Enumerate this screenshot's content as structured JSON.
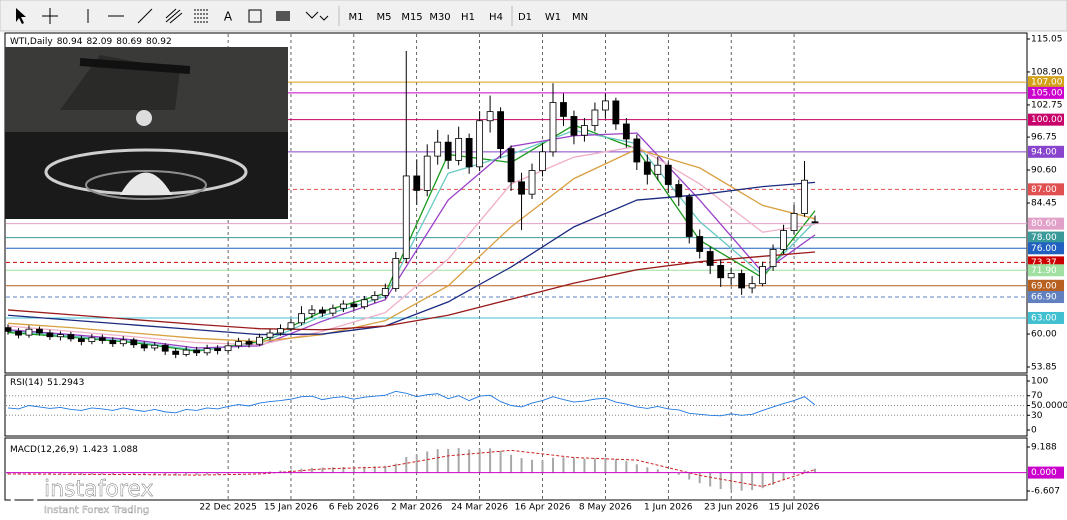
{
  "toolbar": {
    "timeframes": [
      "M1",
      "M5",
      "M15",
      "M30",
      "H1",
      "H4",
      "D1",
      "W1",
      "MN"
    ]
  },
  "logo": {
    "name": "instaforex",
    "tagline": "Instant Forex Trading"
  },
  "chart_data": [
    {
      "type": "candlestick",
      "title": "WTI,Daily",
      "header_values": [
        80.94,
        82.09,
        80.69,
        80.92
      ],
      "categories": [
        null,
        null,
        null,
        null,
        null,
        null,
        null,
        null,
        null,
        null,
        null,
        null,
        null,
        null,
        null,
        null,
        null,
        null,
        null,
        null,
        null,
        "22 Dec 2025",
        null,
        null,
        null,
        null,
        null,
        "15 Jan 2026",
        null,
        null,
        null,
        null,
        null,
        "6 Feb 2026",
        null,
        null,
        null,
        null,
        null,
        "2 Mar 2026",
        null,
        null,
        null,
        null,
        null,
        "24 Mar 2026",
        null,
        null,
        null,
        null,
        null,
        "16 Apr 2026",
        null,
        null,
        null,
        null,
        null,
        "8 May 2026",
        null,
        null,
        null,
        null,
        null,
        "1 Jun 2026",
        null,
        null,
        null,
        null,
        null,
        "23 Jun 2026",
        null,
        null,
        null,
        null,
        null,
        "15 Jul 2026",
        null,
        null
      ],
      "ohlc": {
        "open": [
          61.2,
          60.5,
          59.8,
          60.9,
          60.2,
          59.5,
          59.9,
          59.1,
          58.6,
          59.3,
          58.8,
          58.2,
          58.9,
          58.0,
          57.4,
          57.9,
          56.8,
          56.2,
          57.0,
          56.5,
          57.3,
          56.9,
          57.8,
          58.6,
          58.1,
          59.4,
          60.2,
          61.0,
          62.1,
          63.8,
          64.5,
          63.9,
          64.8,
          65.6,
          65.1,
          66.4,
          67.2,
          68.5,
          74.1,
          89.5,
          86.8,
          93.2,
          95.8,
          92.4,
          96.5,
          91.2,
          99.8,
          101.5,
          94.6,
          88.4,
          86.1,
          90.5,
          94.0,
          103.2,
          100.6,
          97.1,
          98.9,
          101.8,
          103.5,
          99.2,
          96.4,
          92.1,
          89.8,
          91.5,
          87.9,
          85.6,
          78.2,
          75.4,
          72.8,
          70.5,
          71.3,
          68.6,
          69.4,
          72.6,
          75.8,
          79.3,
          82.5,
          80.94
        ],
        "high": [
          61.8,
          61.1,
          61.6,
          61.4,
          60.8,
          60.5,
          60.4,
          59.7,
          60.0,
          59.9,
          59.4,
          59.6,
          59.3,
          58.6,
          58.5,
          58.3,
          57.4,
          57.7,
          57.6,
          58.0,
          57.9,
          58.5,
          59.3,
          59.2,
          60.1,
          60.9,
          61.8,
          62.8,
          65.2,
          65.4,
          65.1,
          65.5,
          66.3,
          66.2,
          67.1,
          68.0,
          69.4,
          75.3,
          112.8,
          92.6,
          95.4,
          98.1,
          97.2,
          98.7,
          97.4,
          101.6,
          104.5,
          102.3,
          95.2,
          90.1,
          91.8,
          95.6,
          106.8,
          104.9,
          101.7,
          100.3,
          103.2,
          104.9,
          104.1,
          100.3,
          97.2,
          93.5,
          93.1,
          92.2,
          88.8,
          86.2,
          79.5,
          76.3,
          73.9,
          72.4,
          72.0,
          70.8,
          73.5,
          76.7,
          80.4,
          84.1,
          92.3,
          82.09
        ],
        "low": [
          59.9,
          59.2,
          59.3,
          59.7,
          58.9,
          58.8,
          58.6,
          57.9,
          58.1,
          58.2,
          57.6,
          57.7,
          57.4,
          56.8,
          56.9,
          56.1,
          55.5,
          55.8,
          55.9,
          56.0,
          56.2,
          56.4,
          57.3,
          57.5,
          57.8,
          58.9,
          59.7,
          60.5,
          61.6,
          63.0,
          63.2,
          63.3,
          64.1,
          64.4,
          64.6,
          65.8,
          66.6,
          67.9,
          73.2,
          84.1,
          85.7,
          91.6,
          90.8,
          91.5,
          89.9,
          90.4,
          97.6,
          92.8,
          86.7,
          79.4,
          85.2,
          89.4,
          93.1,
          98.8,
          95.4,
          95.9,
          97.8,
          100.2,
          98.1,
          94.8,
          90.6,
          87.9,
          88.7,
          86.4,
          83.9,
          76.9,
          74.1,
          71.2,
          68.8,
          69.1,
          67.3,
          67.6,
          68.9,
          71.8,
          74.9,
          78.6,
          81.9,
          80.69
        ],
        "close": [
          60.5,
          59.8,
          60.9,
          60.2,
          59.5,
          59.9,
          59.1,
          58.6,
          59.3,
          58.8,
          58.2,
          58.9,
          58.0,
          57.4,
          57.9,
          56.8,
          56.2,
          57.0,
          56.5,
          57.3,
          56.9,
          57.8,
          58.6,
          58.1,
          59.4,
          60.2,
          61.0,
          62.1,
          63.8,
          64.5,
          63.9,
          64.8,
          65.6,
          65.1,
          66.4,
          67.2,
          68.5,
          74.1,
          89.5,
          86.8,
          93.2,
          95.8,
          92.4,
          96.5,
          91.2,
          99.8,
          101.5,
          94.6,
          88.4,
          86.1,
          90.5,
          94.0,
          103.2,
          100.6,
          97.1,
          98.9,
          101.8,
          103.5,
          99.2,
          96.4,
          92.1,
          89.8,
          91.5,
          87.9,
          85.6,
          78.2,
          75.4,
          72.8,
          70.5,
          71.3,
          68.6,
          69.4,
          72.6,
          75.8,
          79.3,
          82.5,
          88.7,
          80.92
        ]
      },
      "up_color": "#ffffff",
      "down_color": "#000000",
      "moving_averages": {
        "x": [
          0,
          6,
          12,
          18,
          24,
          30,
          36,
          42,
          48,
          54,
          60,
          66,
          72,
          77
        ],
        "series": [
          {
            "color": "#1a9a1a",
            "values": [
              60.3,
              59.4,
              58.4,
              56.8,
              58.6,
              64.2,
              67.6,
              93.5,
              92.0,
              99.0,
              94.5,
              77.5,
              70.5,
              83.0
            ]
          },
          {
            "color": "#66c8c0",
            "values": [
              60.6,
              59.6,
              58.6,
              57.0,
              58.2,
              63.4,
              67.0,
              90.0,
              93.5,
              98.0,
              95.5,
              81.0,
              71.0,
              81.0
            ]
          },
          {
            "color": "#9a40c8",
            "values": [
              60.8,
              59.9,
              58.9,
              57.4,
              57.8,
              62.4,
              66.4,
              85.0,
              95.0,
              97.0,
              97.5,
              85.0,
              71.5,
              78.5
            ]
          },
          {
            "color": "#f0b0c8",
            "values": [
              61.5,
              60.5,
              59.5,
              58.4,
              58.0,
              60.5,
              64.0,
              74.0,
              88.0,
              93.0,
              95.0,
              88.0,
              79.0,
              80.5
            ]
          },
          {
            "color": "#d8a040",
            "values": [
              62.0,
              61.2,
              60.2,
              59.2,
              58.6,
              59.9,
              62.5,
              69.0,
              80.0,
              89.0,
              94.5,
              91.0,
              84.0,
              81.5
            ]
          },
          {
            "color": "#1c2a80",
            "values": [
              63.5,
              62.6,
              61.7,
              60.8,
              59.9,
              60.0,
              61.5,
              66.0,
              72.5,
              80.0,
              85.0,
              86.0,
              87.5,
              88.3
            ]
          },
          {
            "color": "#9a1a1a",
            "values": [
              64.5,
              63.6,
              62.7,
              61.8,
              61.0,
              60.8,
              61.5,
              63.5,
              66.5,
              69.5,
              72.0,
              73.5,
              74.5,
              75.3
            ]
          }
        ]
      },
      "levels": [
        {
          "value": 107,
          "label": "107.00",
          "color": "#d4a017",
          "style": "solid"
        },
        {
          "value": 105,
          "label": "105.00",
          "color": "#cc00cc",
          "style": "solid"
        },
        {
          "value": 100,
          "label": "100.00",
          "color": "#c8006a",
          "style": "solid"
        },
        {
          "value": 94,
          "label": "94.00",
          "color": "#8844cc",
          "style": "solid"
        },
        {
          "value": 87,
          "label": "87.00",
          "color": "#e05050",
          "style": "dashed"
        },
        {
          "value": 80.6,
          "label": "80.60",
          "color": "#e0a0c8",
          "style": "solid"
        },
        {
          "value": 78,
          "label": "78.00",
          "color": "#3a9a9a",
          "style": "solid"
        },
        {
          "value": 76,
          "label": "76.00",
          "color": "#2060c0",
          "style": "solid"
        },
        {
          "value": 73.37,
          "label": "73.37",
          "color": "#cc0000",
          "style": "dashed"
        },
        {
          "value": 71.9,
          "label": "71.90",
          "color": "#a0e0a0",
          "style": "solid"
        },
        {
          "value": 69,
          "label": "69.00",
          "color": "#b86020",
          "style": "solid"
        },
        {
          "value": 66.9,
          "label": "66.90",
          "color": "#6080c0",
          "style": "dashed"
        },
        {
          "value": 63,
          "label": "63.00",
          "color": "#40c0d0",
          "style": "solid"
        }
      ],
      "ylim": [
        53.85,
        115.05
      ],
      "yticks": [
        115.05,
        {
          "value": 108.9,
          "label": "108.90"
        },
        102.75,
        96.75,
        {
          "value": 90.6,
          "label": "90.60"
        },
        84.45,
        {
          "value": 60,
          "label": "60.00"
        },
        53.85
      ],
      "x_grid": true
    },
    {
      "type": "line",
      "title": "RSI(14)",
      "current": 51.2943,
      "color": "#1e78e0",
      "values": [
        45,
        43,
        50,
        47,
        44,
        46,
        42,
        40,
        45,
        43,
        40,
        45,
        41,
        38,
        42,
        37,
        35,
        42,
        40,
        45,
        43,
        48,
        52,
        49,
        55,
        58,
        60,
        63,
        68,
        69,
        62,
        66,
        68,
        63,
        67,
        69,
        71,
        79,
        75,
        68,
        72,
        74,
        64,
        70,
        60,
        69,
        71,
        58,
        50,
        47,
        55,
        60,
        68,
        62,
        57,
        59,
        63,
        65,
        57,
        53,
        47,
        44,
        48,
        43,
        41,
        34,
        32,
        30,
        29,
        33,
        30,
        32,
        40,
        47,
        54,
        60,
        68,
        51.2943
      ],
      "ylim": [
        0,
        100
      ],
      "yticks": [
        100,
        70,
        {
          "value": 50,
          "label": "50.0000"
        },
        30,
        0
      ]
    },
    {
      "type": "bar",
      "title": "MACD(12,26,9)",
      "current": [
        1.423,
        1.088
      ],
      "color": "#a8a8a8",
      "values": [
        -0.6,
        -0.7,
        -0.5,
        -0.5,
        -0.6,
        -0.6,
        -0.7,
        -0.8,
        -0.7,
        -0.7,
        -0.8,
        -0.7,
        -0.8,
        -0.9,
        -0.8,
        -1.0,
        -1.1,
        -1.0,
        -0.9,
        -0.8,
        -0.7,
        -0.5,
        -0.3,
        -0.2,
        0.1,
        0.4,
        0.7,
        1.0,
        1.4,
        1.7,
        1.8,
        1.9,
        2.0,
        2.0,
        2.1,
        2.2,
        2.4,
        3.2,
        5.6,
        6.5,
        7.6,
        8.4,
        8.5,
        8.8,
        8.3,
        8.6,
        8.7,
        7.8,
        6.4,
        5.2,
        4.6,
        4.4,
        5.3,
        5.5,
        5.2,
        5.0,
        5.1,
        5.3,
        4.8,
        4.1,
        3.0,
        1.9,
        1.2,
        0.2,
        -0.8,
        -2.5,
        -3.8,
        -5.0,
        -5.9,
        -6.2,
        -6.5,
        -6.3,
        -5.6,
        -4.4,
        -2.8,
        -1.0,
        1.0,
        1.423
      ],
      "signal": {
        "x": [
          0,
          6,
          12,
          18,
          24,
          30,
          36,
          42,
          48,
          54,
          60,
          66,
          72,
          77
        ],
        "color": "#d02020",
        "values": [
          -0.5,
          -0.6,
          -0.7,
          -0.9,
          -0.5,
          1.3,
          2.0,
          6.0,
          8.0,
          5.4,
          4.5,
          -1.0,
          -5.0,
          1.088
        ]
      },
      "levels": [
        {
          "value": 0,
          "label": "0.000",
          "color": "#cc00cc",
          "style": "solid"
        }
      ],
      "ylim": [
        -8.76,
        11.7
      ],
      "yticks": [
        9.188,
        -6.607
      ]
    }
  ]
}
